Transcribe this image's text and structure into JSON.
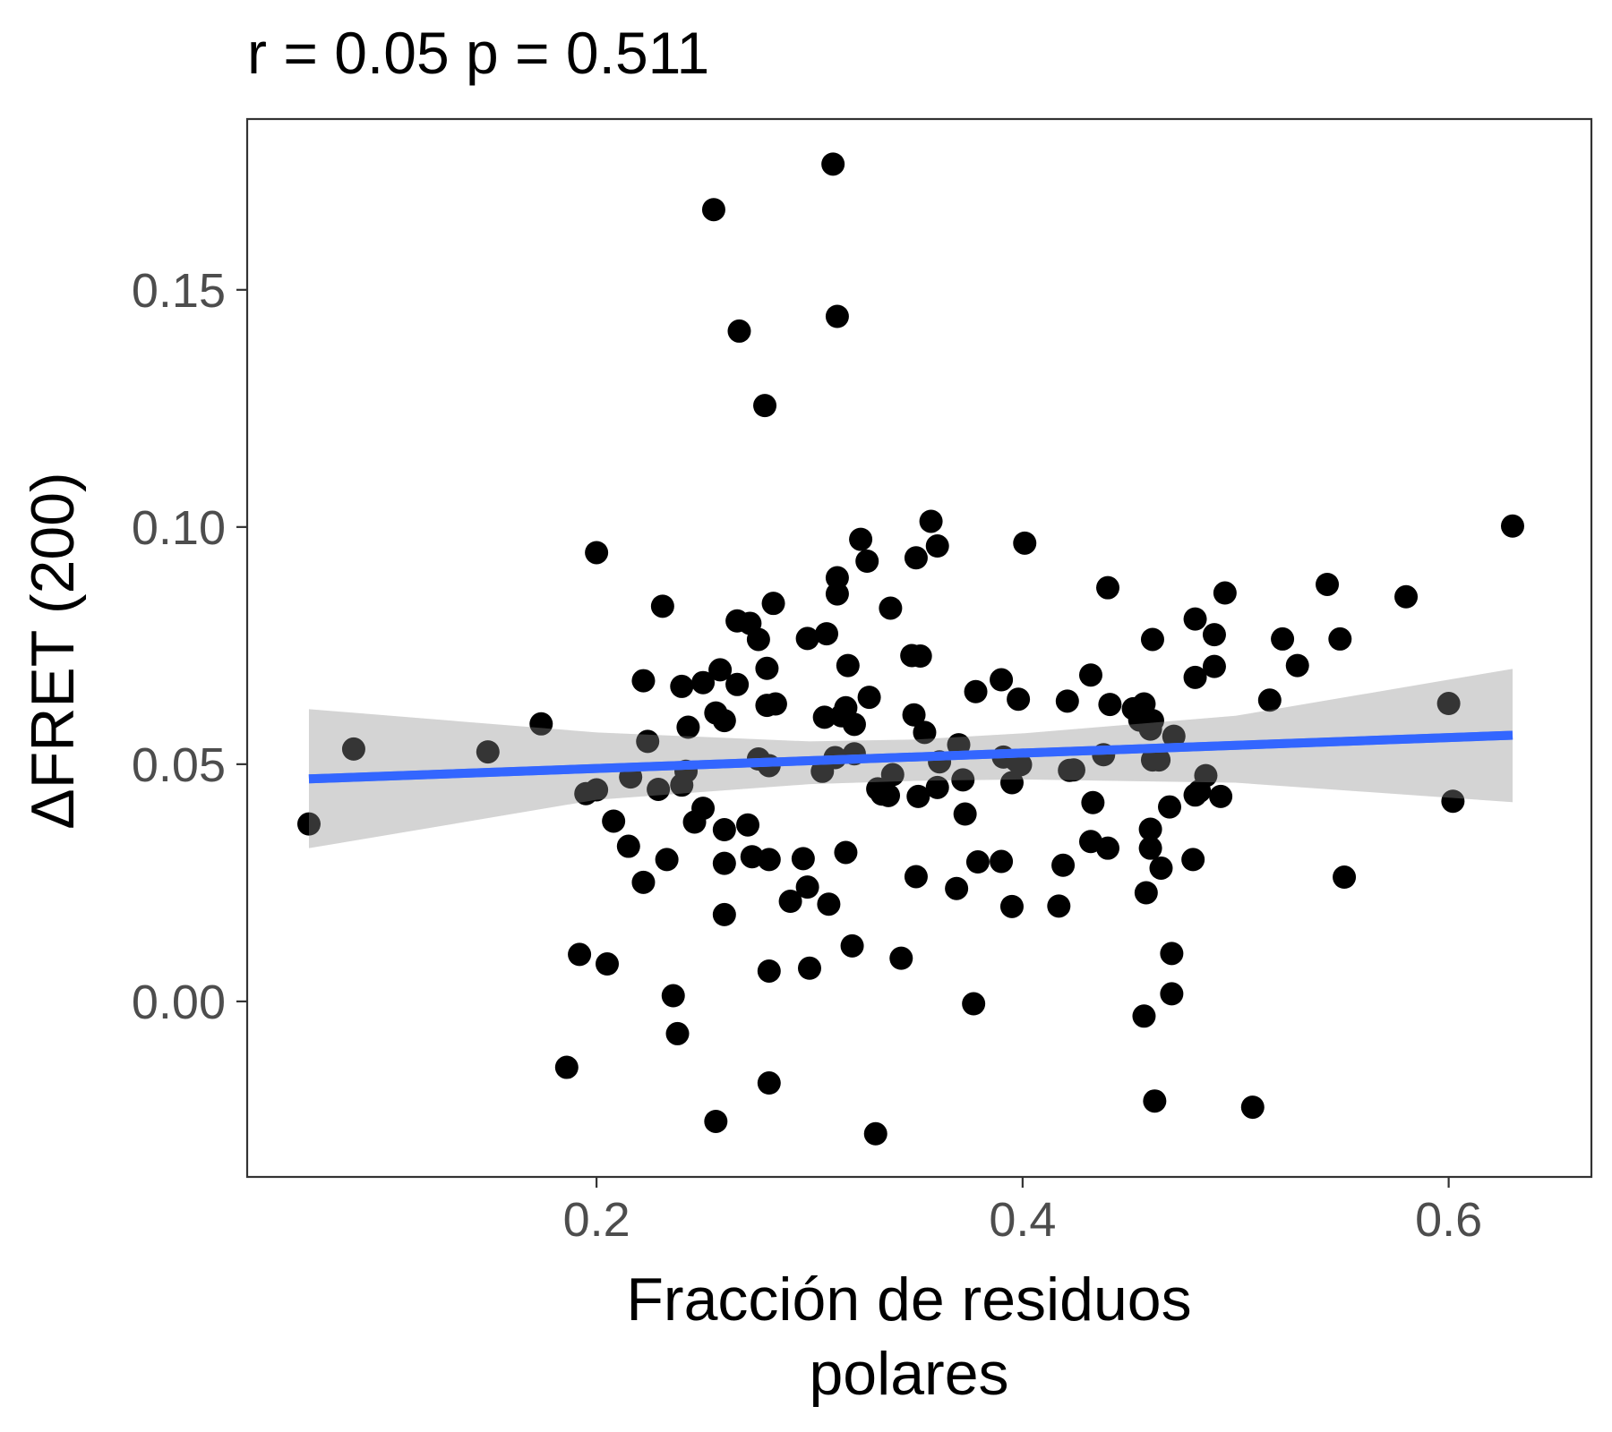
{
  "chart_data": {
    "type": "scatter",
    "title": "r =  0.05 p =  0.511",
    "xlabel": [
      "Fracción de residuos",
      "polares"
    ],
    "ylabel": "ΔFRET (200)",
    "xlim": [
      0.036,
      0.667
    ],
    "ylim": [
      -0.037,
      0.186
    ],
    "x_ticks": [
      0.2,
      0.4,
      0.6
    ],
    "x_tick_labels": [
      "0.2",
      "0.4",
      "0.6"
    ],
    "y_ticks": [
      0.0,
      0.05,
      0.1,
      0.15
    ],
    "y_tick_labels": [
      "0.00",
      "0.05",
      "0.10",
      "0.15"
    ],
    "grid": false,
    "legend": "none",
    "colors": {
      "points": "#000000",
      "fit_line": "#3366ff",
      "confidence_band": "#d3d3d3",
      "panel_border": "#333333",
      "tick_label": "#4d4d4d"
    },
    "fit_line": {
      "x": [
        0.065,
        0.63
      ],
      "y": [
        0.0469,
        0.0561
      ]
    },
    "confidence_band": {
      "x": [
        0.065,
        0.2,
        0.3,
        0.35,
        0.4,
        0.5,
        0.63
      ],
      "lower": [
        0.0323,
        0.0425,
        0.0458,
        0.0465,
        0.0468,
        0.0461,
        0.042
      ],
      "upper": [
        0.0616,
        0.0567,
        0.0548,
        0.0552,
        0.0565,
        0.0602,
        0.0701
      ]
    },
    "series": [
      {
        "points": [
          {
            "x": 0.065,
            "y": 0.0374
          },
          {
            "x": 0.086,
            "y": 0.0532
          },
          {
            "x": 0.149,
            "y": 0.0526
          },
          {
            "x": 0.174,
            "y": 0.0585
          },
          {
            "x": 0.186,
            "y": -0.0139
          },
          {
            "x": 0.192,
            "y": 0.0099
          },
          {
            "x": 0.195,
            "y": 0.0438
          },
          {
            "x": 0.208,
            "y": 0.038
          },
          {
            "x": 0.2,
            "y": 0.0946
          },
          {
            "x": 0.2,
            "y": 0.0446
          },
          {
            "x": 0.205,
            "y": 0.0079
          },
          {
            "x": 0.215,
            "y": 0.0327
          },
          {
            "x": 0.216,
            "y": 0.0473
          },
          {
            "x": 0.222,
            "y": 0.0676
          },
          {
            "x": 0.222,
            "y": 0.0251
          },
          {
            "x": 0.224,
            "y": 0.0548
          },
          {
            "x": 0.229,
            "y": 0.0447
          },
          {
            "x": 0.231,
            "y": 0.0833
          },
          {
            "x": 0.233,
            "y": 0.0299
          },
          {
            "x": 0.236,
            "y": 0.0012
          },
          {
            "x": 0.238,
            "y": -0.0068
          },
          {
            "x": 0.24,
            "y": 0.0664
          },
          {
            "x": 0.24,
            "y": 0.0456
          },
          {
            "x": 0.242,
            "y": 0.0485
          },
          {
            "x": 0.243,
            "y": 0.0578
          },
          {
            "x": 0.246,
            "y": 0.0378
          },
          {
            "x": 0.25,
            "y": 0.0672
          },
          {
            "x": 0.25,
            "y": 0.0407
          },
          {
            "x": 0.255,
            "y": 0.1669
          },
          {
            "x": 0.256,
            "y": 0.0608
          },
          {
            "x": 0.258,
            "y": 0.0699
          },
          {
            "x": 0.256,
            "y": -0.0253
          },
          {
            "x": 0.26,
            "y": 0.0592
          },
          {
            "x": 0.26,
            "y": 0.0362
          },
          {
            "x": 0.26,
            "y": 0.0291
          },
          {
            "x": 0.26,
            "y": 0.0183
          },
          {
            "x": 0.266,
            "y": 0.0802
          },
          {
            "x": 0.267,
            "y": 0.1413
          },
          {
            "x": 0.266,
            "y": 0.0668
          },
          {
            "x": 0.271,
            "y": 0.0372
          },
          {
            "x": 0.272,
            "y": 0.0797
          },
          {
            "x": 0.273,
            "y": 0.0305
          },
          {
            "x": 0.276,
            "y": 0.0763
          },
          {
            "x": 0.276,
            "y": 0.0511
          },
          {
            "x": 0.279,
            "y": 0.1256
          },
          {
            "x": 0.28,
            "y": 0.0702
          },
          {
            "x": 0.28,
            "y": 0.0624
          },
          {
            "x": 0.281,
            "y": 0.0497
          },
          {
            "x": 0.281,
            "y": 0.0299
          },
          {
            "x": 0.281,
            "y": 0.0064
          },
          {
            "x": 0.281,
            "y": -0.0172
          },
          {
            "x": 0.283,
            "y": 0.0839
          },
          {
            "x": 0.284,
            "y": 0.0627
          },
          {
            "x": 0.291,
            "y": 0.0211
          },
          {
            "x": 0.297,
            "y": 0.0301
          },
          {
            "x": 0.299,
            "y": 0.0765
          },
          {
            "x": 0.299,
            "y": 0.0241
          },
          {
            "x": 0.3,
            "y": 0.007
          },
          {
            "x": 0.306,
            "y": 0.0485
          },
          {
            "x": 0.307,
            "y": 0.0599
          },
          {
            "x": 0.308,
            "y": 0.0775
          },
          {
            "x": 0.309,
            "y": 0.0205
          },
          {
            "x": 0.311,
            "y": 0.1765
          },
          {
            "x": 0.312,
            "y": 0.0514
          },
          {
            "x": 0.313,
            "y": 0.1444
          },
          {
            "x": 0.313,
            "y": 0.0893
          },
          {
            "x": 0.313,
            "y": 0.0859
          },
          {
            "x": 0.315,
            "y": 0.0602
          },
          {
            "x": 0.317,
            "y": 0.0619
          },
          {
            "x": 0.317,
            "y": 0.0314
          },
          {
            "x": 0.318,
            "y": 0.0708
          },
          {
            "x": 0.32,
            "y": 0.0117
          },
          {
            "x": 0.321,
            "y": 0.0522
          },
          {
            "x": 0.321,
            "y": 0.0584
          },
          {
            "x": 0.324,
            "y": 0.0974
          },
          {
            "x": 0.327,
            "y": 0.0928
          },
          {
            "x": 0.328,
            "y": 0.0641
          },
          {
            "x": 0.331,
            "y": -0.0279
          },
          {
            "x": 0.332,
            "y": 0.0448
          },
          {
            "x": 0.334,
            "y": 0.0437
          },
          {
            "x": 0.337,
            "y": 0.0434
          },
          {
            "x": 0.338,
            "y": 0.0829
          },
          {
            "x": 0.339,
            "y": 0.0478
          },
          {
            "x": 0.343,
            "y": 0.0091
          },
          {
            "x": 0.348,
            "y": 0.0729
          },
          {
            "x": 0.349,
            "y": 0.0604
          },
          {
            "x": 0.35,
            "y": 0.0935
          },
          {
            "x": 0.35,
            "y": 0.0263
          },
          {
            "x": 0.351,
            "y": 0.0432
          },
          {
            "x": 0.352,
            "y": 0.0728
          },
          {
            "x": 0.354,
            "y": 0.0567
          },
          {
            "x": 0.357,
            "y": 0.1012
          },
          {
            "x": 0.36,
            "y": 0.096
          },
          {
            "x": 0.36,
            "y": 0.0451
          },
          {
            "x": 0.361,
            "y": 0.0505
          },
          {
            "x": 0.369,
            "y": 0.0238
          },
          {
            "x": 0.37,
            "y": 0.0541
          },
          {
            "x": 0.372,
            "y": 0.0467
          },
          {
            "x": 0.373,
            "y": 0.0395
          },
          {
            "x": 0.377,
            "y": -0.0005
          },
          {
            "x": 0.378,
            "y": 0.0653
          },
          {
            "x": 0.379,
            "y": 0.0294
          },
          {
            "x": 0.39,
            "y": 0.0678
          },
          {
            "x": 0.39,
            "y": 0.0295
          },
          {
            "x": 0.391,
            "y": 0.0515
          },
          {
            "x": 0.395,
            "y": 0.0461
          },
          {
            "x": 0.395,
            "y": 0.02
          },
          {
            "x": 0.397,
            "y": 0.0508
          },
          {
            "x": 0.398,
            "y": 0.0637
          },
          {
            "x": 0.399,
            "y": 0.0499
          },
          {
            "x": 0.401,
            "y": 0.0966
          },
          {
            "x": 0.417,
            "y": 0.0201
          },
          {
            "x": 0.419,
            "y": 0.0287
          },
          {
            "x": 0.421,
            "y": 0.0633
          },
          {
            "x": 0.422,
            "y": 0.0487
          },
          {
            "x": 0.424,
            "y": 0.0488
          },
          {
            "x": 0.432,
            "y": 0.0337
          },
          {
            "x": 0.432,
            "y": 0.0688
          },
          {
            "x": 0.433,
            "y": 0.0419
          },
          {
            "x": 0.438,
            "y": 0.052
          },
          {
            "x": 0.44,
            "y": 0.0872
          },
          {
            "x": 0.44,
            "y": 0.0323
          },
          {
            "x": 0.441,
            "y": 0.0626
          },
          {
            "x": 0.452,
            "y": 0.0617
          },
          {
            "x": 0.455,
            "y": 0.0593
          },
          {
            "x": 0.457,
            "y": 0.0627
          },
          {
            "x": 0.457,
            "y": -0.0031
          },
          {
            "x": 0.458,
            "y": 0.0229
          },
          {
            "x": 0.46,
            "y": 0.0363
          },
          {
            "x": 0.46,
            "y": 0.0323
          },
          {
            "x": 0.46,
            "y": 0.0574
          },
          {
            "x": 0.461,
            "y": 0.0592
          },
          {
            "x": 0.461,
            "y": 0.0509
          },
          {
            "x": 0.461,
            "y": 0.0763
          },
          {
            "x": 0.462,
            "y": -0.021
          },
          {
            "x": 0.464,
            "y": 0.0509
          },
          {
            "x": 0.465,
            "y": 0.0281
          },
          {
            "x": 0.469,
            "y": 0.041
          },
          {
            "x": 0.47,
            "y": 0.0101
          },
          {
            "x": 0.47,
            "y": 0.0016
          },
          {
            "x": 0.471,
            "y": 0.0559
          },
          {
            "x": 0.48,
            "y": 0.0299
          },
          {
            "x": 0.481,
            "y": 0.0806
          },
          {
            "x": 0.481,
            "y": 0.0683
          },
          {
            "x": 0.481,
            "y": 0.0435
          },
          {
            "x": 0.483,
            "y": 0.0443
          },
          {
            "x": 0.486,
            "y": 0.0476
          },
          {
            "x": 0.49,
            "y": 0.0773
          },
          {
            "x": 0.49,
            "y": 0.0706
          },
          {
            "x": 0.493,
            "y": 0.0432
          },
          {
            "x": 0.495,
            "y": 0.0861
          },
          {
            "x": 0.508,
            "y": -0.0223
          },
          {
            "x": 0.516,
            "y": 0.0635
          },
          {
            "x": 0.522,
            "y": 0.0764
          },
          {
            "x": 0.529,
            "y": 0.0708
          },
          {
            "x": 0.543,
            "y": 0.0879
          },
          {
            "x": 0.549,
            "y": 0.0764
          },
          {
            "x": 0.551,
            "y": 0.0262
          },
          {
            "x": 0.58,
            "y": 0.0853
          },
          {
            "x": 0.6,
            "y": 0.0628
          },
          {
            "x": 0.602,
            "y": 0.0422
          },
          {
            "x": 0.63,
            "y": 0.1002
          }
        ]
      }
    ]
  }
}
